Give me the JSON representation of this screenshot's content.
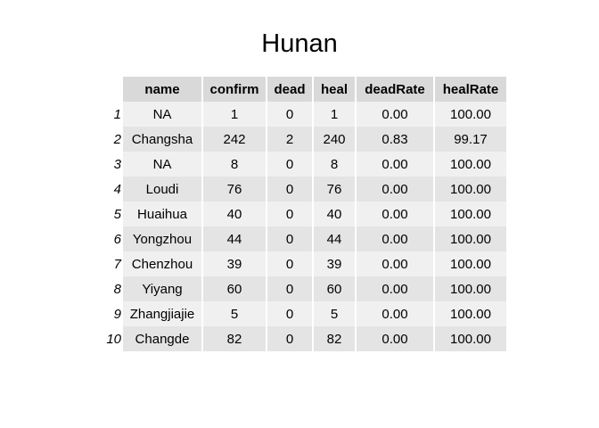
{
  "chart_data": {
    "type": "table",
    "title": "Hunan",
    "columns": [
      "name",
      "confirm",
      "dead",
      "heal",
      "deadRate",
      "healRate"
    ],
    "row_labels": [
      "1",
      "2",
      "3",
      "4",
      "5",
      "6",
      "7",
      "8",
      "9",
      "10"
    ],
    "rows": [
      [
        "NA",
        "1",
        "0",
        "1",
        "0.00",
        "100.00"
      ],
      [
        "Changsha",
        "242",
        "2",
        "240",
        "0.83",
        "99.17"
      ],
      [
        "NA",
        "8",
        "0",
        "8",
        "0.00",
        "100.00"
      ],
      [
        "Loudi",
        "76",
        "0",
        "76",
        "0.00",
        "100.00"
      ],
      [
        "Huaihua",
        "40",
        "0",
        "40",
        "0.00",
        "100.00"
      ],
      [
        "Yongzhou",
        "44",
        "0",
        "44",
        "0.00",
        "100.00"
      ],
      [
        "Chenzhou",
        "39",
        "0",
        "39",
        "0.00",
        "100.00"
      ],
      [
        "Yiyang",
        "60",
        "0",
        "60",
        "0.00",
        "100.00"
      ],
      [
        "Zhangjiajie",
        "5",
        "0",
        "5",
        "0.00",
        "100.00"
      ],
      [
        "Changde",
        "82",
        "0",
        "82",
        "0.00",
        "100.00"
      ]
    ]
  }
}
